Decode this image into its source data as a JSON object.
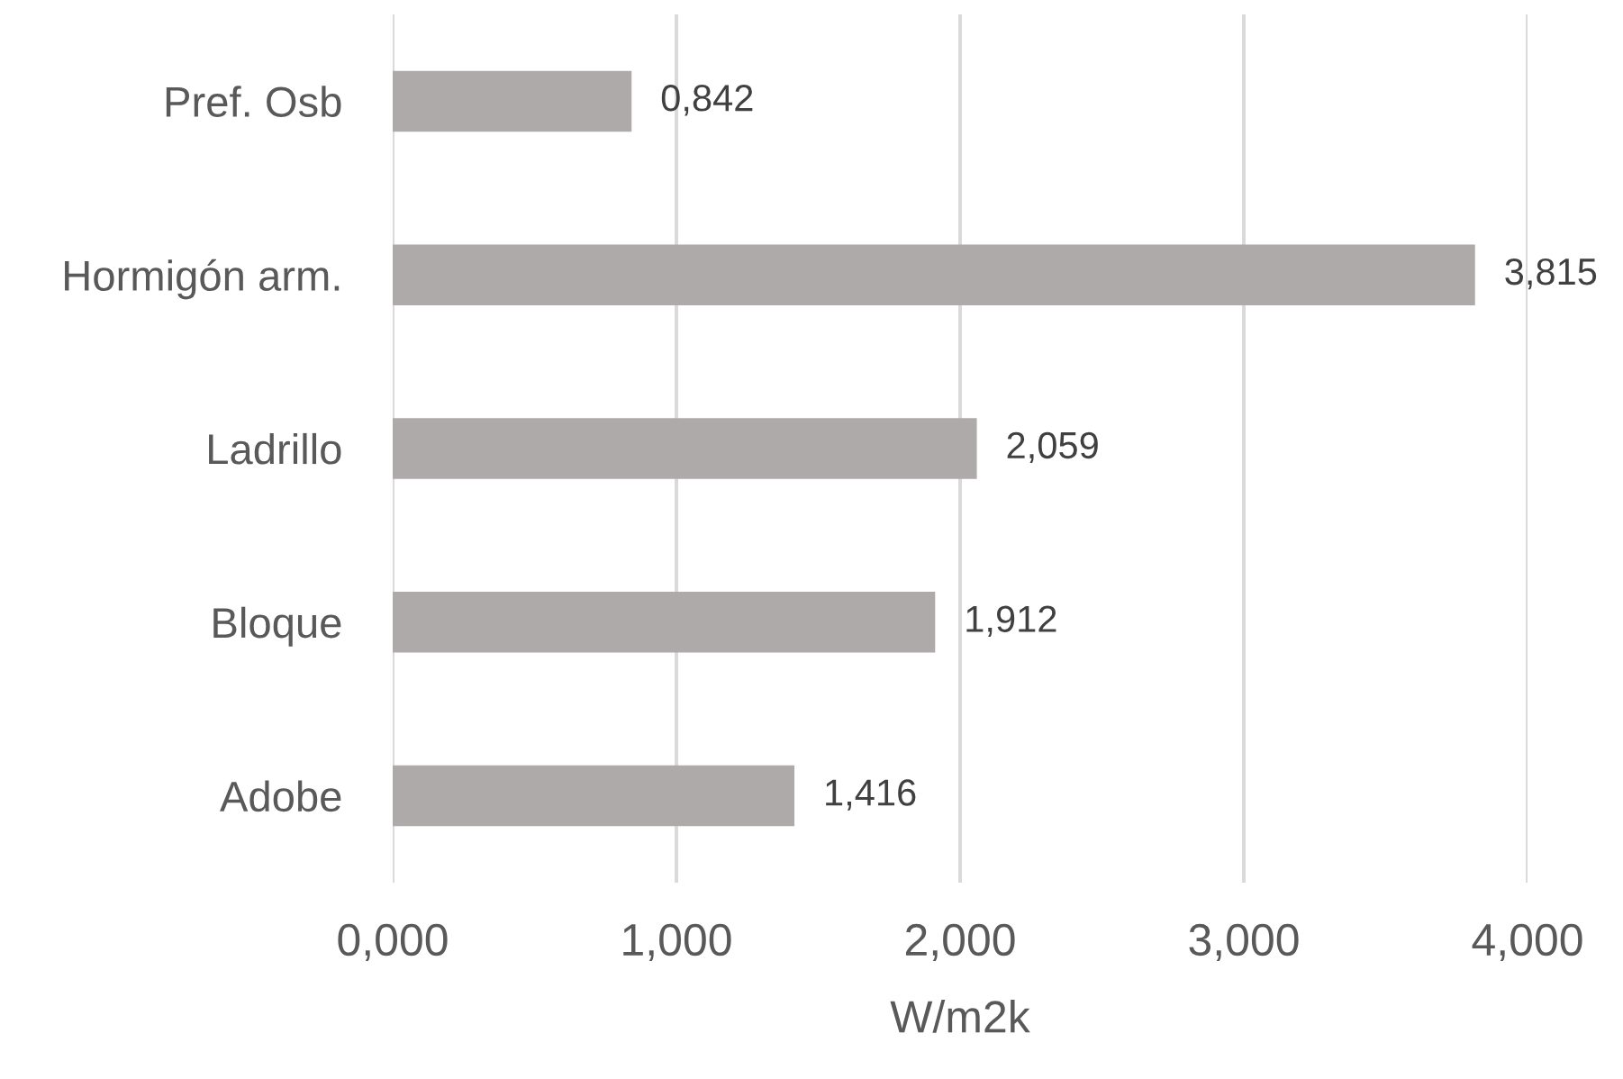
{
  "chart_data": {
    "type": "bar",
    "orientation": "horizontal",
    "categories": [
      "Pref. Osb",
      "Hormigón arm.",
      "Ladrillo",
      "Bloque",
      "Adobe"
    ],
    "values": [
      0.842,
      3.815,
      2.059,
      1.912,
      1.416
    ],
    "value_labels": [
      "0,842",
      "3,815",
      "2,059",
      "1,912",
      "1,416"
    ],
    "color": "#aeaaaa",
    "xlabel": "W/m2k",
    "xlim": [
      0,
      4
    ],
    "xticks": [
      {
        "value": 0,
        "label": "0,000"
      },
      {
        "value": 1,
        "label": "1,000"
      },
      {
        "value": 2,
        "label": "2,000"
      },
      {
        "value": 3,
        "label": "3,000"
      },
      {
        "value": 4,
        "label": "4,000"
      }
    ],
    "grid": "x"
  }
}
